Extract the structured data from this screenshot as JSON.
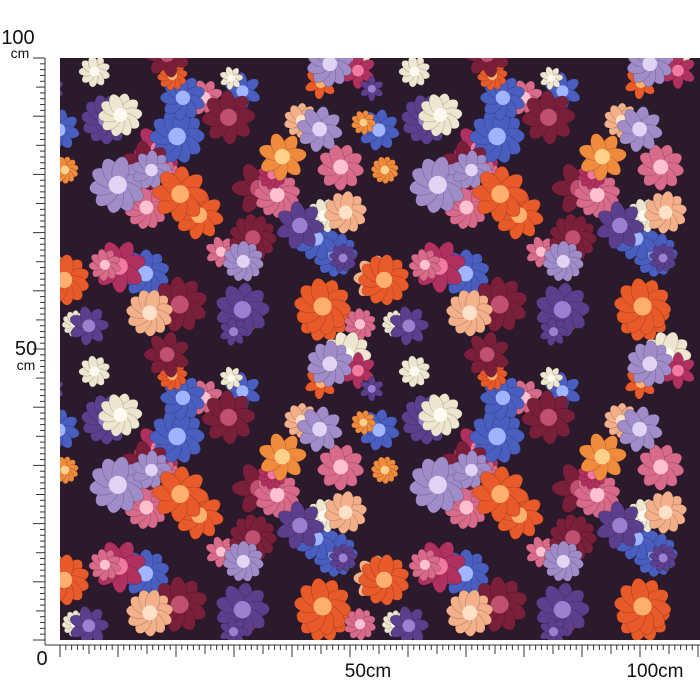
{
  "ruler": {
    "vertical": {
      "top_label": "100",
      "top_unit": "cm",
      "middle_label": "50",
      "middle_unit": "cm"
    },
    "horizontal": {
      "origin_label": "0",
      "middle_label": "50cm",
      "end_label": "100cm"
    }
  }
}
